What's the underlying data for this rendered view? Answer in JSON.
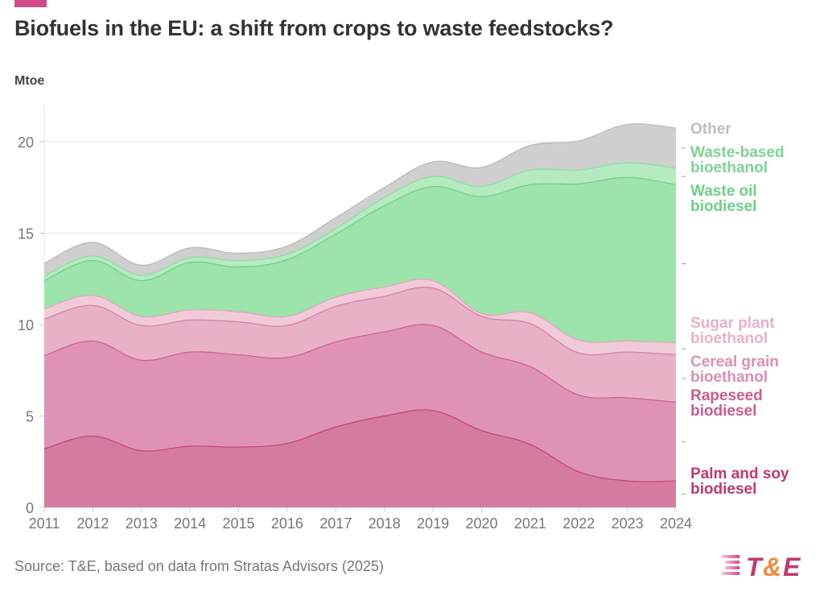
{
  "header": {
    "title": "Biofuels in the EU: a shift from crops to waste feedstocks?",
    "unit_label": "Mtoe"
  },
  "footer": {
    "source": "Source: T&E, based on data from Stratas Advisors (2025)",
    "logo_text_t": "T",
    "logo_text_amp": "&",
    "logo_text_e": "E"
  },
  "colors": {
    "brand_pink": "#d14a8b",
    "brand_orange": "#f08c3c",
    "gridline": "#e6e6e6",
    "axis_text": "#777777"
  },
  "chart_data": {
    "type": "area",
    "stacked": true,
    "title": "Biofuels in the EU: a shift from crops to waste feedstocks?",
    "xlabel": "",
    "ylabel": "Mtoe",
    "ylim": [
      0,
      22
    ],
    "yticks": [
      0,
      5,
      10,
      15,
      20
    ],
    "grid": true,
    "legend_placement": "right",
    "x": [
      2011,
      2012,
      2013,
      2014,
      2015,
      2016,
      2017,
      2018,
      2019,
      2020,
      2021,
      2022,
      2023,
      2024
    ],
    "series": [
      {
        "name": "Palm and soy biodiesel",
        "label_lines": [
          "Palm and soy",
          "biodiesel"
        ],
        "fill": "#d67ba0",
        "stroke": "#c2446f",
        "text_color": "#c0396f",
        "values": [
          3.2,
          3.9,
          3.1,
          3.35,
          3.3,
          3.5,
          4.4,
          5.0,
          5.3,
          4.2,
          3.45,
          1.95,
          1.45,
          1.45
        ]
      },
      {
        "name": "Rapeseed biodiesel",
        "label_lines": [
          "Rapeseed",
          "biodiesel"
        ],
        "fill": "#de93b6",
        "stroke": "#cc5f8c",
        "text_color": "#cc5c8d",
        "values": [
          5.1,
          5.2,
          4.95,
          5.15,
          5.05,
          4.7,
          4.65,
          4.6,
          4.65,
          4.3,
          4.25,
          4.2,
          4.55,
          4.3
        ]
      },
      {
        "name": "Cereal grain bioethanol",
        "label_lines": [
          "Cereal grain",
          "bioethanol"
        ],
        "fill": "#e8b1c8",
        "stroke": "#d47ea3",
        "text_color": "#dc8fb1",
        "values": [
          2.0,
          1.95,
          1.9,
          1.75,
          1.8,
          1.75,
          1.95,
          1.95,
          2.05,
          1.95,
          2.35,
          2.3,
          2.5,
          2.6
        ]
      },
      {
        "name": "Sugar plant bioethanol",
        "label_lines": [
          "Sugar plant",
          "bioethanol"
        ],
        "fill": "#f1cad9",
        "stroke": "#e2a4bf",
        "text_color": "#e9b1c9",
        "values": [
          0.55,
          0.55,
          0.5,
          0.55,
          0.55,
          0.5,
          0.5,
          0.5,
          0.4,
          0.15,
          0.6,
          0.7,
          0.6,
          0.65
        ]
      },
      {
        "name": "Waste oil biodiesel",
        "label_lines": [
          "Waste oil",
          "biodiesel"
        ],
        "fill": "#9de3ac",
        "stroke": "#6fcf87",
        "text_color": "#6fcf87",
        "values": [
          1.55,
          1.9,
          1.95,
          2.6,
          2.45,
          3.1,
          3.45,
          4.45,
          5.15,
          6.4,
          7.0,
          8.55,
          8.95,
          8.65
        ]
      },
      {
        "name": "Waste-based bioethanol",
        "label_lines": [
          "Waste-based",
          "bioethanol"
        ],
        "fill": "#b5eac0",
        "stroke": "#8ddca0",
        "text_color": "#7fd494",
        "values": [
          0.25,
          0.25,
          0.3,
          0.25,
          0.35,
          0.3,
          0.3,
          0.45,
          0.55,
          0.55,
          0.8,
          0.75,
          0.8,
          0.9
        ]
      },
      {
        "name": "Other",
        "label_lines": [
          "Other"
        ],
        "fill": "#cfcfcf",
        "stroke": "#b9b9b9",
        "text_color": "#bdbdbd",
        "values": [
          0.7,
          0.75,
          0.55,
          0.55,
          0.4,
          0.45,
          0.6,
          0.55,
          0.8,
          1.05,
          1.35,
          1.6,
          2.1,
          2.2
        ]
      }
    ]
  }
}
